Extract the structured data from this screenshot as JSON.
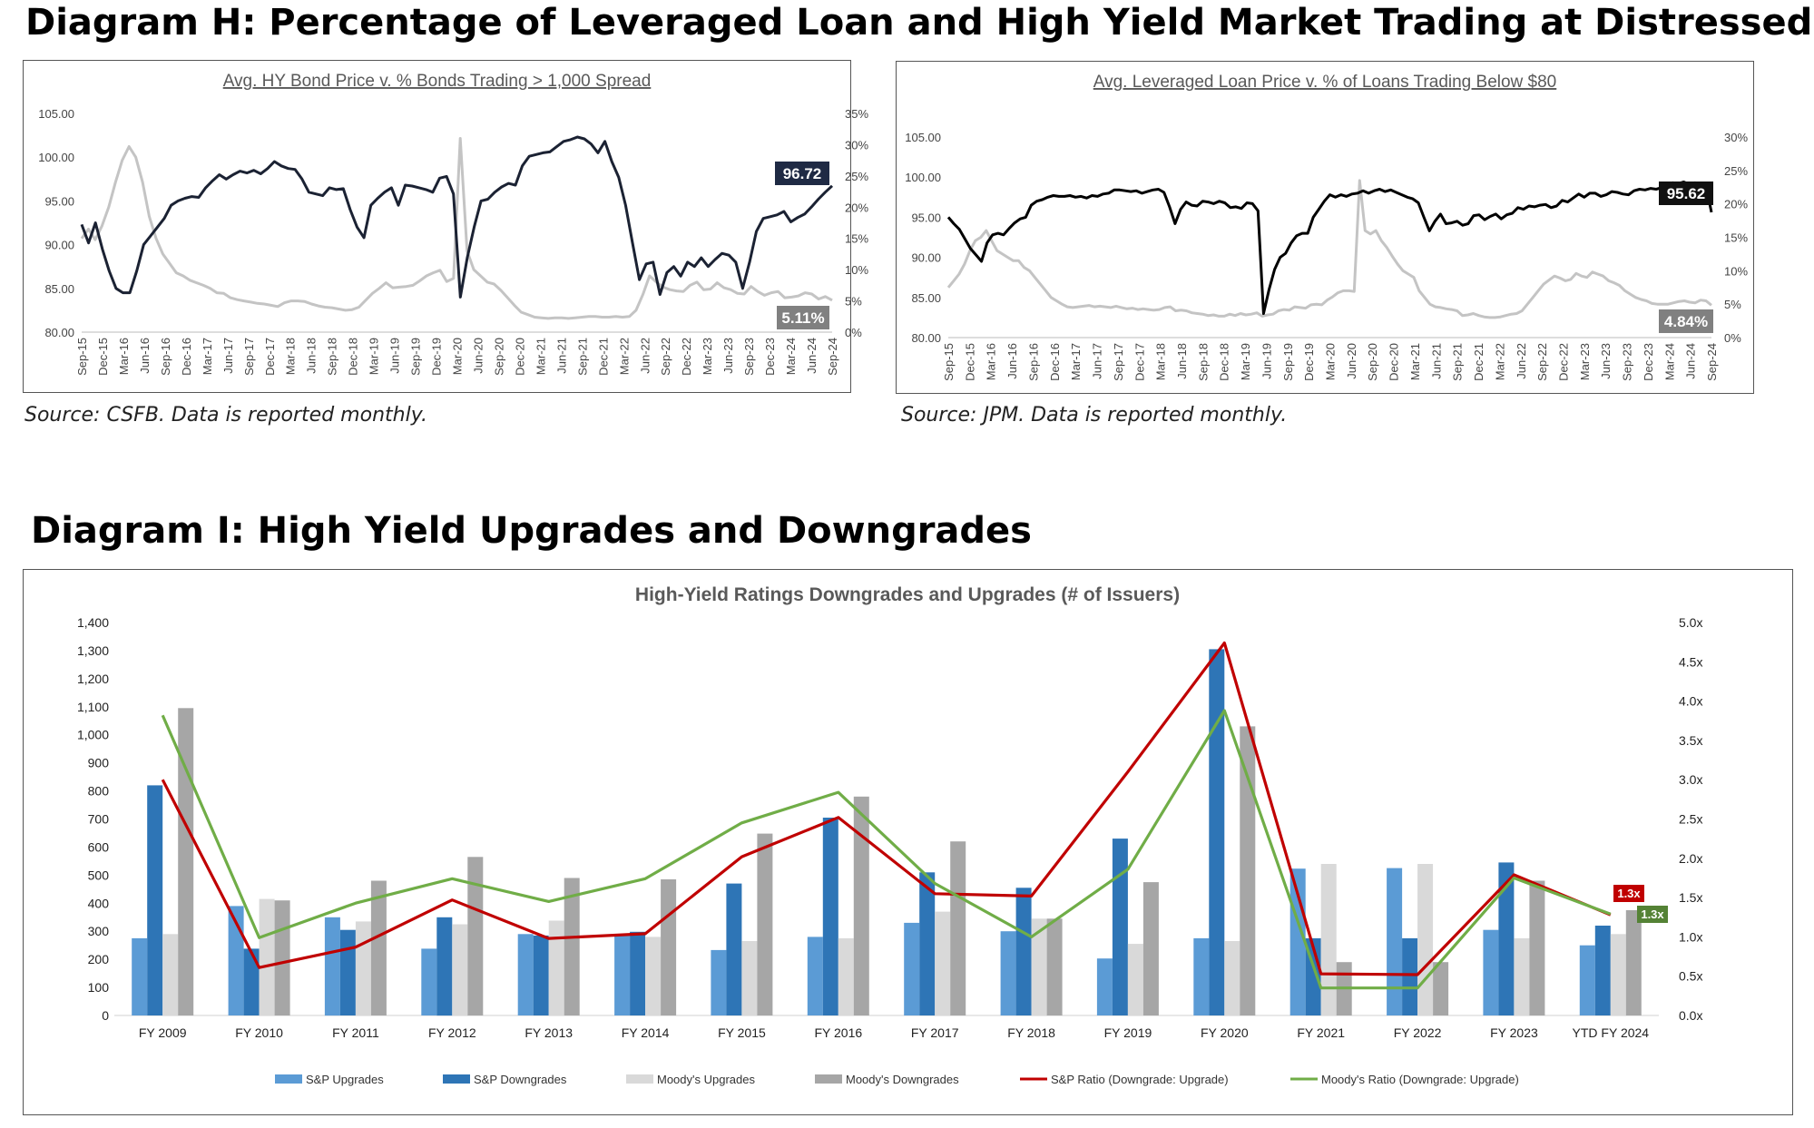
{
  "heading_h": "Diagram H: Percentage of Leveraged Loan and High Yield Market Trading at Distressed",
  "heading_i": "Diagram I: High Yield Upgrades and Downgrades",
  "source_left": "Source: CSFB. Data is reported monthly.",
  "source_right": "Source: JPM. Data is reported monthly.",
  "colors": {
    "dark_line": "#1b2233",
    "black_line": "#000000",
    "gray_line": "#c4c4c4",
    "sp_up": "#5b9bd5",
    "sp_down": "#2e75b6",
    "moody_up": "#d9d9d9",
    "moody_down": "#a6a6a6",
    "sp_ratio": "#c00000",
    "moody_ratio": "#70ad47"
  },
  "chart_data": [
    {
      "type": "line",
      "title": "Avg. HY Bond Price v. % Bonds Trading > 1,000 Spread",
      "x_tick_labels": [
        "Sep-15",
        "Dec-15",
        "Mar-16",
        "Jun-16",
        "Sep-16",
        "Dec-16",
        "Mar-17",
        "Jun-17",
        "Sep-17",
        "Dec-17",
        "Mar-18",
        "Jun-18",
        "Sep-18",
        "Dec-18",
        "Mar-19",
        "Jun-19",
        "Sep-19",
        "Dec-19",
        "Mar-20",
        "Jun-20",
        "Sep-20",
        "Dec-20",
        "Mar-21",
        "Jun-21",
        "Sep-21",
        "Dec-21",
        "Mar-22",
        "Jun-22",
        "Sep-22",
        "Dec-22",
        "Mar-23",
        "Jun-23",
        "Sep-23",
        "Dec-23",
        "Mar-24",
        "Jun-24",
        "Sep-24"
      ],
      "y_left_ticks": [
        "105.00",
        "100.00",
        "95.00",
        "90.00",
        "85.00",
        "80.00"
      ],
      "y_left_range": [
        80,
        105
      ],
      "y_right_ticks": [
        "35%",
        "30%",
        "25%",
        "20%",
        "15%",
        "10%",
        "5%",
        "0%"
      ],
      "y_right_range": [
        0,
        35
      ],
      "series": [
        {
          "axis": "left",
          "color": "#1b2233",
          "values": [
            92.3,
            90.2,
            92.5,
            89.5,
            87,
            85,
            84.5,
            84.5,
            87,
            90,
            91,
            92,
            93,
            94.5,
            95,
            95.3,
            95.5,
            95.4,
            96.5,
            97.3,
            98,
            97.5,
            98,
            98.4,
            98.2,
            98.5,
            98.1,
            98.7,
            99.5,
            99,
            98.7,
            98.6,
            97.5,
            96,
            95.8,
            95.6,
            96.5,
            96.3,
            96.4,
            94,
            92,
            90.8,
            94.5,
            95.3,
            96,
            96.5,
            94.5,
            96.8,
            96.7,
            96.5,
            96.3,
            96,
            97.6,
            97.8,
            95.8,
            84,
            88.5,
            92,
            95,
            95.2,
            96,
            96.6,
            97,
            96.8,
            99,
            100.1,
            100.3,
            100.5,
            100.6,
            101.2,
            101.8,
            102,
            102.3,
            102.1,
            101.5,
            100.5,
            101.8,
            99.5,
            97.7,
            94.5,
            90.2,
            86,
            87.8,
            88,
            84.3,
            86.8,
            87.5,
            86.4,
            88,
            87.5,
            88.5,
            87.5,
            88.3,
            89,
            88.8,
            88,
            85,
            88,
            91.5,
            93,
            93.2,
            93.4,
            93.8,
            92.6,
            93.1,
            93.5,
            94.3,
            95.2,
            96,
            96.72
          ]
        },
        {
          "axis": "right",
          "color": "#c4c4c4",
          "values": [
            15,
            16.5,
            14.8,
            17,
            20,
            24,
            27.5,
            29.7,
            28,
            24,
            18.5,
            15,
            12.5,
            11,
            9.5,
            9,
            8.3,
            7.9,
            7.5,
            7,
            6.3,
            6.2,
            5.5,
            5.2,
            5,
            4.8,
            4.6,
            4.5,
            4.3,
            4.1,
            4.7,
            5,
            5,
            4.9,
            4.5,
            4.2,
            4,
            3.9,
            3.7,
            3.5,
            3.6,
            4,
            5.1,
            6.2,
            7,
            7.9,
            7.1,
            7.2,
            7.3,
            7.5,
            8.2,
            9,
            9.5,
            9.9,
            8.1,
            8.6,
            31,
            13,
            10,
            9,
            8,
            7.7,
            6.7,
            5.5,
            4.3,
            3.2,
            2.8,
            2.4,
            2.3,
            2.2,
            2.3,
            2.3,
            2.2,
            2.3,
            2.4,
            2.5,
            2.5,
            2.4,
            2.4,
            2.5,
            2.4,
            2.5,
            3.5,
            6,
            9,
            8,
            7.2,
            6.8,
            6.6,
            6.5,
            7.5,
            8,
            6.8,
            6.9,
            7.9,
            7.1,
            6.8,
            6.2,
            6.1,
            7.3,
            6.5,
            5.9,
            6.3,
            6.5,
            5.5,
            5.6,
            5.8,
            6.3,
            6.1,
            5.3,
            5.7,
            5.11
          ]
        }
      ],
      "callouts": [
        "96.72",
        "5.11%"
      ]
    },
    {
      "type": "line",
      "title": "Avg. Leveraged Loan Price v. % of Loans Trading Below $80",
      "x_tick_labels": [
        "Sep-15",
        "Dec-15",
        "Mar-16",
        "Jun-16",
        "Sep-16",
        "Dec-16",
        "Mar-17",
        "Jun-17",
        "Sep-17",
        "Dec-17",
        "Mar-18",
        "Jun-18",
        "Sep-18",
        "Dec-18",
        "Mar-19",
        "Jun-19",
        "Sep-19",
        "Dec-19",
        "Mar-20",
        "Jun-20",
        "Sep-20",
        "Dec-20",
        "Mar-21",
        "Jun-21",
        "Sep-21",
        "Dec-21",
        "Mar-22",
        "Jun-22",
        "Sep-22",
        "Dec-22",
        "Mar-23",
        "Jun-23",
        "Sep-23",
        "Dec-23",
        "Mar-24",
        "Jun-24",
        "Sep-24"
      ],
      "y_left_ticks": [
        "105.00",
        "100.00",
        "95.00",
        "90.00",
        "85.00",
        "80.00"
      ],
      "y_left_range": [
        80,
        105
      ],
      "y_right_ticks": [
        "30%",
        "25%",
        "20%",
        "15%",
        "10%",
        "5%",
        "0%"
      ],
      "y_right_range": [
        0,
        30
      ],
      "series": [
        {
          "axis": "left",
          "color": "#000000",
          "values": [
            95,
            94.2,
            93.5,
            92.3,
            91.1,
            90.3,
            89.5,
            91.8,
            92.8,
            93,
            92.8,
            93.6,
            94.3,
            94.8,
            95,
            96.5,
            97,
            97.2,
            97.5,
            97.7,
            97.6,
            97.6,
            97.7,
            97.5,
            97.6,
            97.4,
            97.7,
            97.6,
            97.9,
            98,
            98.4,
            98.4,
            98.3,
            98.2,
            98.3,
            98,
            98.2,
            98.4,
            98.5,
            98.1,
            96.3,
            94.2,
            96,
            96.9,
            96.5,
            96.4,
            97,
            96.9,
            96.7,
            97,
            96.8,
            96.2,
            96.3,
            96.1,
            96.8,
            96.7,
            95.8,
            83,
            86,
            88.5,
            90,
            90.5,
            91.8,
            92.7,
            93,
            93,
            95,
            96,
            97,
            97.8,
            97.5,
            97.8,
            97.6,
            97.9,
            98,
            98.3,
            98,
            98.3,
            98.5,
            98.2,
            98.4,
            98.1,
            97.8,
            97.5,
            97.3,
            96.8,
            95,
            93.3,
            94.5,
            95.4,
            94.2,
            94.3,
            94.5,
            94,
            94.2,
            95.2,
            95.3,
            94.7,
            95.1,
            95.4,
            94.8,
            95.3,
            95.5,
            96.2,
            96,
            96.4,
            96.3,
            96.5,
            96.6,
            96.2,
            96.4,
            97.1,
            96.9,
            97.4,
            97.9,
            97.5,
            98,
            98,
            97.6,
            97.8,
            98.2,
            98.1,
            97.9,
            97.8,
            98.3,
            98.5,
            98.4,
            98.6,
            98.5,
            98.7,
            99,
            99.3,
            99.2,
            99.4,
            99.1,
            99.3,
            99.2,
            99,
            95.62
          ]
        },
        {
          "axis": "right",
          "color": "#c4c4c4",
          "values": [
            7.5,
            8.5,
            9.5,
            11,
            13,
            14.5,
            15,
            16,
            14.5,
            13,
            12.5,
            12,
            11.5,
            11.5,
            10.5,
            10,
            9,
            8,
            7,
            6,
            5.5,
            5,
            4.6,
            4.5,
            4.6,
            4.7,
            4.8,
            4.6,
            4.7,
            4.6,
            4.5,
            4.7,
            4.5,
            4.3,
            4.4,
            4.2,
            4.3,
            4.2,
            4.1,
            4.2,
            4.5,
            4.6,
            4,
            4.1,
            4,
            3.7,
            3.6,
            3.5,
            3.3,
            3.4,
            3.2,
            3.2,
            3.5,
            3.3,
            3.6,
            3.4,
            3.5,
            3.7,
            3.2,
            3.4,
            3.5,
            4,
            4.2,
            4.1,
            4.6,
            4.5,
            4.4,
            4.9,
            5,
            4.9,
            5.6,
            6.1,
            6.7,
            7,
            7,
            6.9,
            23.5,
            16,
            15.5,
            16,
            14.5,
            13.5,
            12.2,
            11,
            10,
            9.5,
            9,
            7,
            6,
            5,
            4.6,
            4.5,
            4.3,
            4.2,
            4,
            3.3,
            3.4,
            3.6,
            3.3,
            3.1,
            3,
            3,
            3.1,
            3.3,
            3.5,
            3.6,
            4,
            5,
            6,
            7,
            8,
            8.6,
            9.2,
            8.9,
            8.5,
            8.7,
            9.6,
            9.2,
            9,
            9.8,
            9.5,
            9.2,
            8.5,
            8.2,
            7.8,
            7,
            6.5,
            6,
            5.7,
            5.5,
            5.1,
            5,
            5,
            5,
            5.2,
            5.4,
            5.5,
            5.3,
            5.2,
            5.6,
            5.5,
            4.84
          ]
        }
      ],
      "callouts": [
        "95.62",
        "4.84%"
      ]
    },
    {
      "type": "bar",
      "title": "High-Yield Ratings Downgrades and Upgrades  (# of Issuers)",
      "categories": [
        "FY 2009",
        "FY 2010",
        "FY 2011",
        "FY 2012",
        "FY 2013",
        "FY 2014",
        "FY 2015",
        "FY 2016",
        "FY 2017",
        "FY 2018",
        "FY 2019",
        "FY 2020",
        "FY 2021",
        "FY 2022",
        "FY 2023",
        "YTD FY 2024"
      ],
      "y_left_ticks": [
        "1,400",
        "1,300",
        "1,200",
        "1,100",
        "1,000",
        "900",
        "800",
        "700",
        "600",
        "500",
        "400",
        "300",
        "200",
        "100",
        "0"
      ],
      "ylim": [
        0,
        1400
      ],
      "y_right_ticks": [
        "5.0x",
        "4.5x",
        "4.0x",
        "3.5x",
        "3.0x",
        "2.5x",
        "2.0x",
        "1.5x",
        "1.0x",
        "0.5x",
        "0.0x"
      ],
      "y2lim": [
        0,
        5
      ],
      "series": [
        {
          "name": "S&P Upgrades",
          "kind": "bar",
          "color": "#5b9bd5",
          "values": [
            275,
            390,
            350,
            238,
            290,
            285,
            233,
            280,
            330,
            300,
            203,
            275,
            523,
            525,
            305,
            250
          ]
        },
        {
          "name": "S&P Downgrades",
          "kind": "bar",
          "color": "#2e75b6",
          "values": [
            820,
            238,
            305,
            350,
            285,
            298,
            470,
            705,
            510,
            455,
            630,
            1305,
            275,
            275,
            545,
            320
          ]
        },
        {
          "name": "Moody's Upgrades",
          "kind": "bar",
          "color": "#d9d9d9",
          "values": [
            290,
            415,
            335,
            325,
            338,
            280,
            265,
            275,
            370,
            345,
            255,
            265,
            540,
            540,
            275,
            290
          ]
        },
        {
          "name": "Moody's Downgrades",
          "kind": "bar",
          "color": "#a6a6a6",
          "values": [
            1095,
            410,
            480,
            565,
            490,
            485,
            648,
            780,
            620,
            345,
            475,
            1030,
            190,
            190,
            480,
            375
          ]
        },
        {
          "name": "S&P Ratio (Downgrade: Upgrade)",
          "kind": "line",
          "axis": "right",
          "color": "#c00000",
          "values": [
            3.0,
            0.61,
            0.87,
            1.47,
            0.98,
            1.04,
            2.02,
            2.52,
            1.55,
            1.52,
            3.1,
            4.74,
            0.53,
            0.52,
            1.79,
            1.28
          ]
        },
        {
          "name": "Moody's Ratio (Downgrade: Upgrade)",
          "kind": "line",
          "axis": "right",
          "color": "#70ad47",
          "values": [
            3.82,
            0.99,
            1.43,
            1.74,
            1.45,
            1.74,
            2.45,
            2.84,
            1.68,
            1.0,
            1.86,
            3.88,
            0.35,
            0.35,
            1.75,
            1.29
          ]
        }
      ],
      "callouts": [
        "1.3x",
        "1.3x"
      ],
      "legend_position": "bottom"
    }
  ]
}
